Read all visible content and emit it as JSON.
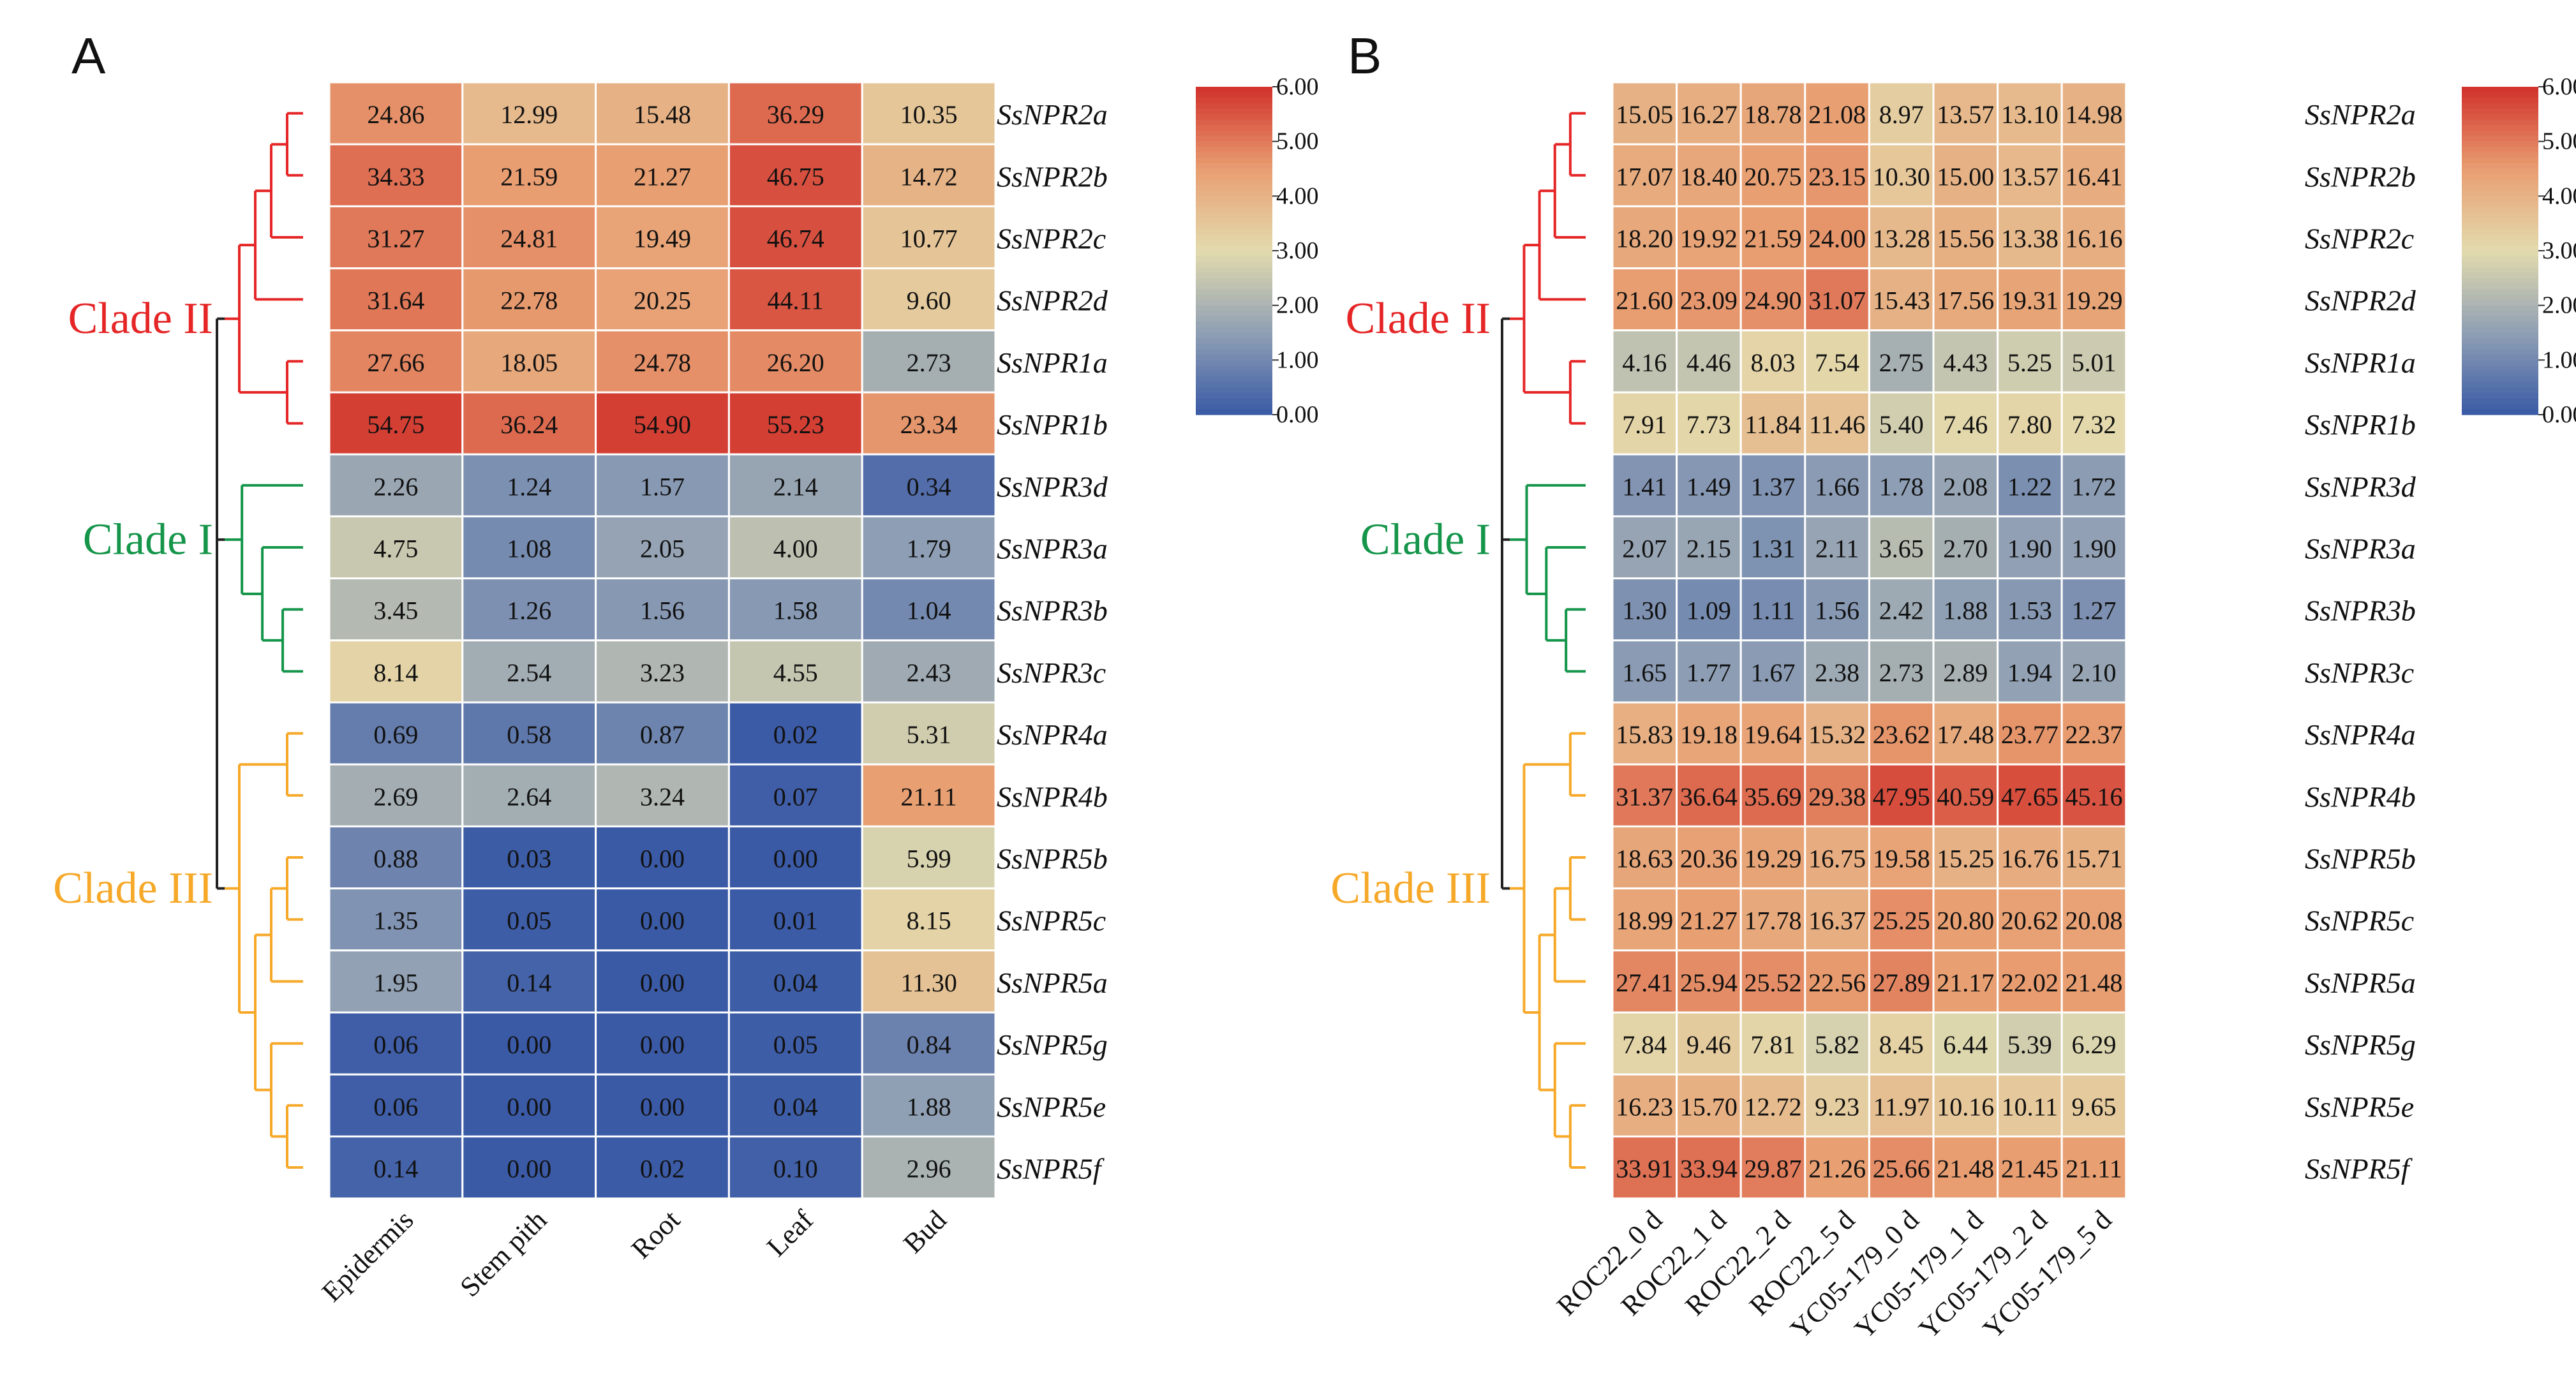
{
  "colors": {
    "scale": [
      "#3a5aa6",
      "#8f9fb4",
      "#e3dbae",
      "#e89e71",
      "#d1312b"
    ],
    "grid_line": "#ffffff",
    "clade_II": "#e52526",
    "clade_I": "#14954a",
    "clade_III": "#f6a828",
    "root": "#222222"
  },
  "legend": {
    "ticks": [
      "6.00",
      "5.00",
      "4.00",
      "3.00",
      "2.00",
      "1.00",
      "0.00"
    ],
    "min": 0,
    "max": 6
  },
  "clades": [
    {
      "id": "clade_II",
      "name": "Clade II",
      "color": "#e52526"
    },
    {
      "id": "clade_I",
      "name": "Clade I",
      "color": "#14954a"
    },
    {
      "id": "clade_III",
      "name": "Clade III",
      "color": "#f6a828"
    }
  ],
  "chart_data": [
    {
      "type": "heatmap",
      "panel": "A",
      "title": "",
      "scale_range": [
        0,
        6
      ],
      "columns": [
        "Epidermis",
        "Stem pith",
        "Root",
        "Leaf",
        "Bud"
      ],
      "rows": [
        "SsNPR2a",
        "SsNPR2b",
        "SsNPR2c",
        "SsNPR2d",
        "SsNPR1a",
        "SsNPR1b",
        "SsNPR3d",
        "SsNPR3a",
        "SsNPR3b",
        "SsNPR3c",
        "SsNPR4a",
        "SsNPR4b",
        "SsNPR5b",
        "SsNPR5c",
        "SsNPR5a",
        "SsNPR5g",
        "SsNPR5e",
        "SsNPR5f"
      ],
      "row_clades": [
        "clade_II",
        "clade_II",
        "clade_II",
        "clade_II",
        "clade_II",
        "clade_II",
        "clade_I",
        "clade_I",
        "clade_I",
        "clade_I",
        "clade_III",
        "clade_III",
        "clade_III",
        "clade_III",
        "clade_III",
        "clade_III",
        "clade_III",
        "clade_III"
      ],
      "values": [
        [
          "24.86",
          "12.99",
          "15.48",
          "36.29",
          "10.35"
        ],
        [
          "34.33",
          "21.59",
          "21.27",
          "46.75",
          "14.72"
        ],
        [
          "31.27",
          "24.81",
          "19.49",
          "46.74",
          "10.77"
        ],
        [
          "31.64",
          "22.78",
          "20.25",
          "44.11",
          "9.60"
        ],
        [
          "27.66",
          "18.05",
          "24.78",
          "26.20",
          "2.73"
        ],
        [
          "54.75",
          "36.24",
          "54.90",
          "55.23",
          "23.34"
        ],
        [
          "2.26",
          "1.24",
          "1.57",
          "2.14",
          "0.34"
        ],
        [
          "4.75",
          "1.08",
          "2.05",
          "4.00",
          "1.79"
        ],
        [
          "3.45",
          "1.26",
          "1.56",
          "1.58",
          "1.04"
        ],
        [
          "8.14",
          "2.54",
          "3.23",
          "4.55",
          "2.43"
        ],
        [
          "0.69",
          "0.58",
          "0.87",
          "0.02",
          "5.31"
        ],
        [
          "2.69",
          "2.64",
          "3.24",
          "0.07",
          "21.11"
        ],
        [
          "0.88",
          "0.03",
          "0.00",
          "0.00",
          "5.99"
        ],
        [
          "1.35",
          "0.05",
          "0.00",
          "0.01",
          "8.15"
        ],
        [
          "1.95",
          "0.14",
          "0.00",
          "0.04",
          "11.30"
        ],
        [
          "0.06",
          "0.00",
          "0.00",
          "0.05",
          "0.84"
        ],
        [
          "0.06",
          "0.00",
          "0.00",
          "0.04",
          "1.88"
        ],
        [
          "0.14",
          "0.00",
          "0.02",
          "0.10",
          "2.96"
        ]
      ]
    },
    {
      "type": "heatmap",
      "panel": "B",
      "title": "",
      "scale_range": [
        0,
        6
      ],
      "columns": [
        "ROC22_0 d",
        "ROC22_1 d",
        "ROC22_2 d",
        "ROC22_5 d",
        "YC05-179_0 d",
        "YC05-179_1 d",
        "YC05-179_2 d",
        "YC05-179_5 d"
      ],
      "rows": [
        "SsNPR2a",
        "SsNPR2b",
        "SsNPR2c",
        "SsNPR2d",
        "SsNPR1a",
        "SsNPR1b",
        "SsNPR3d",
        "SsNPR3a",
        "SsNPR3b",
        "SsNPR3c",
        "SsNPR4a",
        "SsNPR4b",
        "SsNPR5b",
        "SsNPR5c",
        "SsNPR5a",
        "SsNPR5g",
        "SsNPR5e",
        "SsNPR5f"
      ],
      "row_clades": [
        "clade_II",
        "clade_II",
        "clade_II",
        "clade_II",
        "clade_II",
        "clade_II",
        "clade_I",
        "clade_I",
        "clade_I",
        "clade_I",
        "clade_III",
        "clade_III",
        "clade_III",
        "clade_III",
        "clade_III",
        "clade_III",
        "clade_III",
        "clade_III"
      ],
      "values": [
        [
          "15.05",
          "16.27",
          "18.78",
          "21.08",
          "8.97",
          "13.57",
          "13.10",
          "14.98"
        ],
        [
          "17.07",
          "18.40",
          "20.75",
          "23.15",
          "10.30",
          "15.00",
          "13.57",
          "16.41"
        ],
        [
          "18.20",
          "19.92",
          "21.59",
          "24.00",
          "13.28",
          "15.56",
          "13.38",
          "16.16"
        ],
        [
          "21.60",
          "23.09",
          "24.90",
          "31.07",
          "15.43",
          "17.56",
          "19.31",
          "19.29"
        ],
        [
          "4.16",
          "4.46",
          "8.03",
          "7.54",
          "2.75",
          "4.43",
          "5.25",
          "5.01"
        ],
        [
          "7.91",
          "7.73",
          "11.84",
          "11.46",
          "5.40",
          "7.46",
          "7.80",
          "7.32"
        ],
        [
          "1.41",
          "1.49",
          "1.37",
          "1.66",
          "1.78",
          "2.08",
          "1.22",
          "1.72"
        ],
        [
          "2.07",
          "2.15",
          "1.31",
          "2.11",
          "3.65",
          "2.70",
          "1.90",
          "1.90"
        ],
        [
          "1.30",
          "1.09",
          "1.11",
          "1.56",
          "2.42",
          "1.88",
          "1.53",
          "1.27"
        ],
        [
          "1.65",
          "1.77",
          "1.67",
          "2.38",
          "2.73",
          "2.89",
          "1.94",
          "2.10"
        ],
        [
          "15.83",
          "19.18",
          "19.64",
          "15.32",
          "23.62",
          "17.48",
          "23.77",
          "22.37"
        ],
        [
          "31.37",
          "36.64",
          "35.69",
          "29.38",
          "47.95",
          "40.59",
          "47.65",
          "45.16"
        ],
        [
          "18.63",
          "20.36",
          "19.29",
          "16.75",
          "19.58",
          "15.25",
          "16.76",
          "15.71"
        ],
        [
          "18.99",
          "21.27",
          "17.78",
          "16.37",
          "25.25",
          "20.80",
          "20.62",
          "20.08"
        ],
        [
          "27.41",
          "25.94",
          "25.52",
          "22.56",
          "27.89",
          "21.17",
          "22.02",
          "21.48"
        ],
        [
          "7.84",
          "9.46",
          "7.81",
          "5.82",
          "8.45",
          "6.44",
          "5.39",
          "6.29"
        ],
        [
          "16.23",
          "15.70",
          "12.72",
          "9.23",
          "11.97",
          "10.16",
          "10.11",
          "9.65"
        ],
        [
          "33.91",
          "33.94",
          "29.87",
          "21.26",
          "25.66",
          "21.48",
          "21.45",
          "21.11"
        ]
      ]
    }
  ]
}
